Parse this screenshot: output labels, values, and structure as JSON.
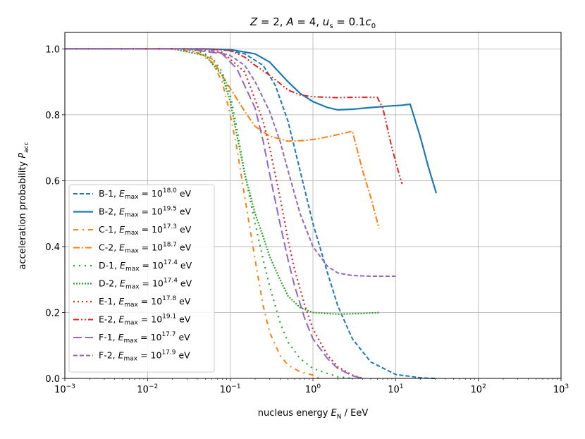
{
  "chart_data": {
    "type": "line",
    "title": "Z = 2, A = 4, u_s = 0.1c_0",
    "title_parts": {
      "z": "Z",
      "z_val": " = 2, ",
      "a": "A",
      "a_val": " = 4, ",
      "u": "u",
      "u_sub": "s",
      "u_mid": " = 0.1",
      "c": "c",
      "c_sub": "0"
    },
    "xlabel": "nucleus energy E_N / EeV",
    "xlabel_parts": {
      "pre": "nucleus energy ",
      "e": "E",
      "sub": "N",
      "post": " / EeV"
    },
    "ylabel": "acceleration probability P_acc",
    "ylabel_parts": {
      "pre": "acceleration probability ",
      "p": "P",
      "sub": "acc"
    },
    "x_scale": "log",
    "xlim": [
      0.001,
      1000
    ],
    "ylim": [
      0.0,
      1.05
    ],
    "xticks": [
      {
        "value": 0.001,
        "base": "10",
        "exp": "−3"
      },
      {
        "value": 0.01,
        "base": "10",
        "exp": "−2"
      },
      {
        "value": 0.1,
        "base": "10",
        "exp": "−1"
      },
      {
        "value": 1,
        "base": "10",
        "exp": "0"
      },
      {
        "value": 10,
        "base": "10",
        "exp": "1"
      },
      {
        "value": 100,
        "base": "10",
        "exp": "2"
      },
      {
        "value": 1000,
        "base": "10",
        "exp": "3"
      }
    ],
    "yticks": [
      {
        "value": 0.0,
        "label": "0.0"
      },
      {
        "value": 0.2,
        "label": "0.2"
      },
      {
        "value": 0.4,
        "label": "0.4"
      },
      {
        "value": 0.6,
        "label": "0.6"
      },
      {
        "value": 0.8,
        "label": "0.8"
      },
      {
        "value": 1.0,
        "label": "1.0"
      }
    ],
    "grid": true,
    "legend_position": "center-left",
    "emax_label": "E",
    "emax_sub": "max",
    "unit": "eV",
    "series": [
      {
        "name": "B-1",
        "exp": "18.0",
        "color": "#1f77b4",
        "style": "dashed",
        "x": [
          0.001,
          0.02,
          0.08,
          0.15,
          0.25,
          0.35,
          0.5,
          0.7,
          1.0,
          1.5,
          2.0,
          3.0,
          5.0,
          10,
          20,
          30
        ],
        "y": [
          1.0,
          1.0,
          0.998,
          0.985,
          0.95,
          0.89,
          0.78,
          0.63,
          0.47,
          0.32,
          0.22,
          0.12,
          0.05,
          0.012,
          0.002,
          0.0
        ]
      },
      {
        "name": "B-2",
        "exp": "19.5",
        "color": "#1f77b4",
        "style": "solid",
        "x": [
          0.001,
          0.05,
          0.1,
          0.2,
          0.3,
          0.5,
          0.7,
          1.0,
          1.5,
          2.0,
          3.0,
          5.0,
          8.0,
          12.0,
          15.0,
          20.0,
          25.0,
          31.0
        ],
        "y": [
          1.0,
          1.0,
          0.998,
          0.985,
          0.96,
          0.9,
          0.865,
          0.84,
          0.822,
          0.815,
          0.817,
          0.822,
          0.826,
          0.829,
          0.832,
          0.73,
          0.64,
          0.562
        ]
      },
      {
        "name": "C-1",
        "exp": "17.3",
        "color": "#ff7f0e",
        "style": "dashdot-sparse",
        "x": [
          0.001,
          0.02,
          0.04,
          0.06,
          0.08,
          0.1,
          0.12,
          0.15,
          0.2,
          0.25,
          0.3,
          0.4,
          0.5,
          0.7,
          1.0,
          1.2
        ],
        "y": [
          1.0,
          1.0,
          0.99,
          0.96,
          0.9,
          0.8,
          0.7,
          0.55,
          0.36,
          0.22,
          0.14,
          0.07,
          0.04,
          0.02,
          0.01,
          0.0
        ]
      },
      {
        "name": "C-2",
        "exp": "18.7",
        "color": "#ff7f0e",
        "style": "dashdot",
        "x": [
          0.001,
          0.03,
          0.06,
          0.1,
          0.15,
          0.2,
          0.3,
          0.5,
          0.8,
          1.2,
          2.0,
          3.0,
          4.0,
          5.0,
          6.3
        ],
        "y": [
          1.0,
          1.0,
          0.97,
          0.88,
          0.81,
          0.765,
          0.735,
          0.72,
          0.722,
          0.728,
          0.74,
          0.75,
          0.63,
          0.55,
          0.455
        ]
      },
      {
        "name": "D-1",
        "exp": "17.4",
        "color": "#2ca02c",
        "style": "dotted-sparse",
        "x": [
          0.001,
          0.02,
          0.04,
          0.06,
          0.08,
          0.1,
          0.12,
          0.15,
          0.2,
          0.25,
          0.3,
          0.4,
          0.5,
          0.7,
          1.0,
          1.5,
          2.0,
          3.0
        ],
        "y": [
          1.0,
          1.0,
          0.995,
          0.975,
          0.93,
          0.86,
          0.76,
          0.62,
          0.47,
          0.36,
          0.28,
          0.17,
          0.11,
          0.06,
          0.03,
          0.015,
          0.005,
          0.0
        ]
      },
      {
        "name": "D-2",
        "exp": "17.4",
        "color": "#2ca02c",
        "style": "dotted",
        "x": [
          0.001,
          0.02,
          0.05,
          0.08,
          0.1,
          0.12,
          0.15,
          0.2,
          0.25,
          0.3,
          0.4,
          0.5,
          0.7,
          1.0,
          2.0,
          4.0,
          6.5
        ],
        "y": [
          1.0,
          1.0,
          0.98,
          0.92,
          0.84,
          0.74,
          0.62,
          0.5,
          0.43,
          0.37,
          0.3,
          0.25,
          0.215,
          0.2,
          0.195,
          0.197,
          0.2
        ]
      },
      {
        "name": "E-1",
        "exp": "17.8",
        "color": "#d62728",
        "style": "dashdot-dense",
        "x": [
          0.001,
          0.03,
          0.08,
          0.15,
          0.25,
          0.3,
          0.4,
          0.5,
          0.6,
          0.8,
          1.0,
          1.5,
          2.0,
          3.0,
          4.0
        ],
        "y": [
          1.0,
          1.0,
          0.99,
          0.93,
          0.78,
          0.7,
          0.55,
          0.42,
          0.33,
          0.22,
          0.15,
          0.07,
          0.035,
          0.01,
          0.0
        ]
      },
      {
        "name": "E-2",
        "exp": "19.1",
        "color": "#d62728",
        "style": "dashdotdot",
        "x": [
          0.001,
          0.05,
          0.1,
          0.15,
          0.2,
          0.3,
          0.4,
          0.5,
          0.7,
          1.0,
          1.5,
          2.0,
          3.0,
          4.0,
          6.0,
          7.0,
          9.0,
          11.0,
          12.0
        ],
        "y": [
          1.0,
          1.0,
          0.995,
          0.975,
          0.95,
          0.92,
          0.895,
          0.875,
          0.86,
          0.855,
          0.853,
          0.852,
          0.853,
          0.853,
          0.853,
          0.82,
          0.7,
          0.62,
          0.59
        ]
      },
      {
        "name": "F-1",
        "exp": "17.7",
        "color": "#9467bd",
        "style": "longdash",
        "x": [
          0.001,
          0.03,
          0.08,
          0.12,
          0.2,
          0.25,
          0.3,
          0.4,
          0.5,
          0.6,
          0.8,
          1.0,
          1.5,
          2.0,
          3.0,
          4.0
        ],
        "y": [
          1.0,
          1.0,
          0.985,
          0.94,
          0.82,
          0.72,
          0.62,
          0.47,
          0.36,
          0.28,
          0.18,
          0.12,
          0.06,
          0.03,
          0.008,
          0.0
        ]
      },
      {
        "name": "F-2",
        "exp": "17.9",
        "color": "#9467bd",
        "style": "dashed",
        "x": [
          0.001,
          0.05,
          0.1,
          0.15,
          0.2,
          0.3,
          0.4,
          0.5,
          0.7,
          1.0,
          1.5,
          2.0,
          3.0,
          5.0,
          8.0,
          10.0
        ],
        "y": [
          1.0,
          1.0,
          0.98,
          0.95,
          0.9,
          0.81,
          0.72,
          0.63,
          0.5,
          0.4,
          0.34,
          0.32,
          0.312,
          0.31,
          0.31,
          0.31
        ]
      }
    ]
  }
}
